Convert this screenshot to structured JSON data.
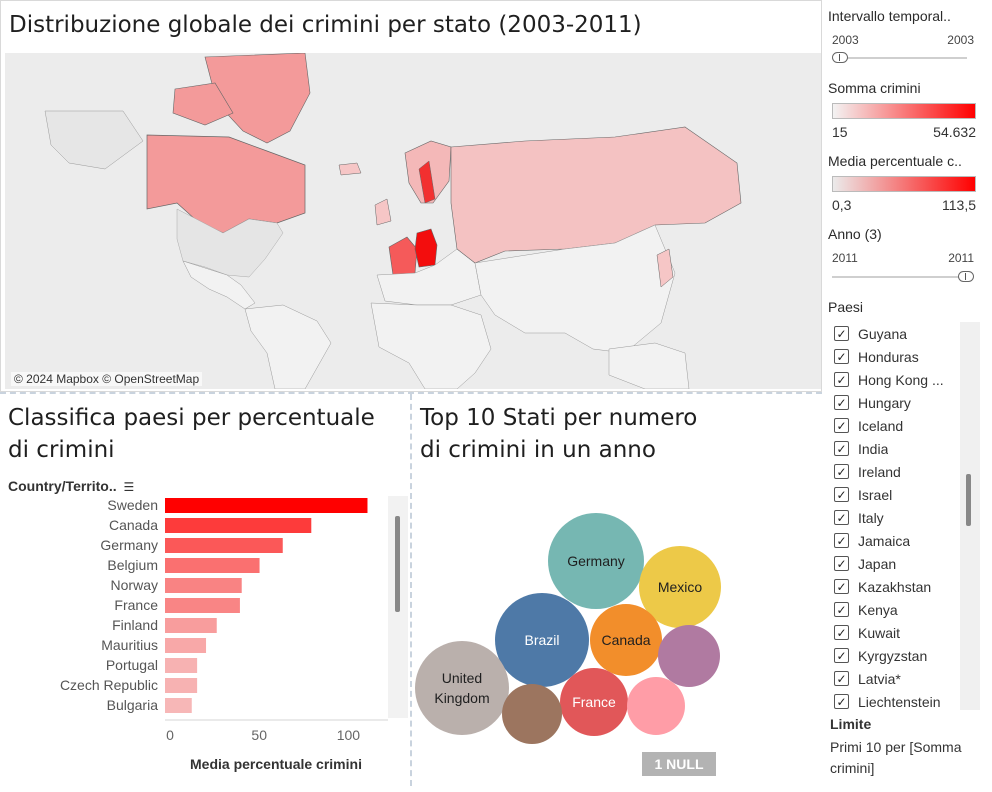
{
  "map": {
    "title": "Distribuzione globale dei crimini per stato (2003-2011)",
    "credit": "© 2024 Mapbox © OpenStreetMap",
    "colors": {
      "background": "#ececec",
      "land_default": "#f2f2f2",
      "canada": "#f39a9a",
      "russia": "#f4c2c2",
      "germany": "#f30d0d",
      "france": "#f55a5a",
      "sweden": "#f23030",
      "usa": "#e5e5e5"
    }
  },
  "bar_panel": {
    "title_line1": "Classifica paesi per percentuale",
    "title_line2": "di crimini",
    "sort_header": "Country/Territo.."
  },
  "chart_data": {
    "type": "bar",
    "orientation": "horizontal",
    "categories": [
      "Sweden",
      "Canada",
      "Germany",
      "Belgium",
      "Norway",
      "France",
      "Finland",
      "Mauritius",
      "Portugal",
      "Czech Republic",
      "Bulgaria"
    ],
    "values": [
      113.5,
      82,
      66,
      53,
      43,
      42,
      29,
      23,
      18,
      18,
      15
    ],
    "xlabel": "Media percentuale crimini",
    "ylabel": "Country/Territo..",
    "xlim": [
      0,
      125
    ],
    "ticks": [
      0,
      50,
      100
    ],
    "color_scale": [
      "#f6d3d3",
      "#ff0000"
    ]
  },
  "bubble_panel": {
    "title_line1": "Top 10 Stati per numero",
    "title_line2": "di crimini in un anno",
    "null_badge": "1 NULL",
    "bubbles": [
      {
        "label": "Germany",
        "color": "#76b7b2",
        "text_color": "#1f1f1f"
      },
      {
        "label": "Mexico",
        "color": "#edc948",
        "text_color": "#1f1f1f"
      },
      {
        "label": "Brazil",
        "color": "#4e79a7",
        "text_color": "#ffffff"
      },
      {
        "label": "Canada",
        "color": "#f28e2b",
        "text_color": "#1f1f1f"
      },
      {
        "label": "",
        "color": "#b07aa1",
        "text_color": "#1f1f1f"
      },
      {
        "label": "United\nKingdom",
        "color": "#bab0ac",
        "text_color": "#1f1f1f"
      },
      {
        "label": "France",
        "color": "#e15759",
        "text_color": "#ffffff"
      },
      {
        "label": "",
        "color": "#ff9da7",
        "text_color": "#1f1f1f"
      },
      {
        "label": "",
        "color": "#9c755f",
        "text_color": "#1f1f1f"
      }
    ]
  },
  "sidebar": {
    "time_filter": {
      "title": "Intervallo temporal..",
      "min": "2003",
      "max": "2003"
    },
    "sum_legend": {
      "title": "Somma crimini",
      "min": "15",
      "max": "54.632"
    },
    "avg_legend": {
      "title": "Media percentuale c..",
      "min": "0,3",
      "max": "113,5"
    },
    "year_filter": {
      "title": "Anno (3)",
      "min": "2011",
      "max": "2011"
    },
    "countries_title": "Paesi",
    "countries": [
      "Guyana",
      "Honduras",
      "Hong Kong ...",
      "Hungary",
      "Iceland",
      "India",
      "Ireland",
      "Israel",
      "Italy",
      "Jamaica",
      "Japan",
      "Kazakhstan",
      "Kenya",
      "Kuwait",
      "Kyrgyzstan",
      "Latvia*",
      "Liechtenstein"
    ],
    "check_glyph": "✓",
    "limit_title": "Limite",
    "limit_text": "Primi 10 per [Somma crimini]"
  }
}
